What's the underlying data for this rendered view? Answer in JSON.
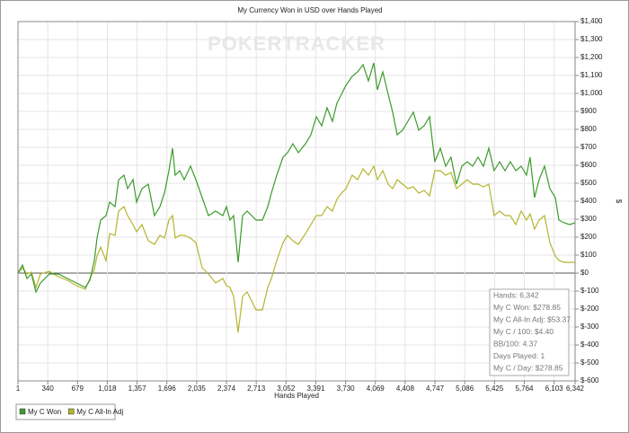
{
  "chart_data": {
    "type": "line",
    "title": "My Currency Won in USD over Hands Played",
    "xlabel": "Hands Played",
    "ylabel": "$",
    "watermark": "POKERTRACKER",
    "x": [
      1,
      52,
      103,
      154,
      206,
      257,
      359,
      461,
      564,
      666,
      768,
      819,
      870,
      901,
      942,
      1003,
      1044,
      1106,
      1146,
      1208,
      1249,
      1310,
      1351,
      1412,
      1484,
      1555,
      1617,
      1668,
      1719,
      1760,
      1791,
      1842,
      1893,
      1965,
      2026,
      2098,
      2169,
      2251,
      2333,
      2374,
      2415,
      2456,
      2507,
      2558,
      2609,
      2660,
      2711,
      2783,
      2844,
      2885,
      2946,
      3018,
      3069,
      3130,
      3192,
      3274,
      3335,
      3396,
      3458,
      3519,
      3580,
      3631,
      3683,
      3734,
      3805,
      3867,
      3928,
      3990,
      4051,
      4092,
      4153,
      4215,
      4266,
      4317,
      4378,
      4439,
      4501,
      4562,
      4624,
      4685,
      4746,
      4808,
      4869,
      4930,
      4992,
      5053,
      5114,
      5176,
      5237,
      5299,
      5360,
      5421,
      5483,
      5544,
      5605,
      5667,
      5728,
      5789,
      5830,
      5881,
      5932,
      5994,
      6055,
      6117,
      6158,
      6219,
      6280,
      6342
    ],
    "series": [
      {
        "name": "My C Won",
        "color": "#3c9a2c",
        "values": [
          0,
          45,
          -30,
          -5,
          -105,
          -55,
          -5,
          -5,
          -30,
          -55,
          -80,
          -40,
          70,
          195,
          295,
          320,
          395,
          370,
          520,
          545,
          470,
          520,
          395,
          470,
          495,
          320,
          370,
          445,
          570,
          695,
          545,
          570,
          520,
          595,
          520,
          420,
          320,
          345,
          320,
          370,
          295,
          320,
          60,
          320,
          345,
          320,
          295,
          295,
          370,
          445,
          545,
          645,
          670,
          720,
          670,
          720,
          770,
          870,
          820,
          920,
          845,
          945,
          995,
          1045,
          1095,
          1120,
          1160,
          1070,
          1170,
          1020,
          1120,
          995,
          895,
          770,
          795,
          845,
          895,
          795,
          820,
          870,
          620,
          695,
          595,
          645,
          495,
          595,
          620,
          595,
          645,
          595,
          695,
          570,
          620,
          570,
          620,
          570,
          595,
          545,
          645,
          420,
          520,
          595,
          470,
          420,
          295,
          280,
          270,
          280
        ]
      },
      {
        "name": "My C All-In Adj",
        "color": "#b4b52f",
        "values": [
          0,
          30,
          -5,
          5,
          -80,
          -5,
          10,
          -20,
          -40,
          -70,
          -90,
          -30,
          20,
          95,
          145,
          70,
          220,
          210,
          345,
          370,
          320,
          270,
          230,
          270,
          180,
          160,
          210,
          195,
          295,
          320,
          195,
          210,
          210,
          195,
          170,
          30,
          -5,
          -55,
          -30,
          -70,
          -80,
          -130,
          -330,
          -130,
          -105,
          -155,
          -205,
          -205,
          -80,
          -30,
          70,
          170,
          210,
          180,
          160,
          220,
          270,
          320,
          320,
          370,
          345,
          410,
          445,
          470,
          545,
          520,
          580,
          545,
          595,
          520,
          570,
          495,
          470,
          520,
          495,
          470,
          480,
          445,
          460,
          430,
          570,
          570,
          545,
          560,
          470,
          495,
          520,
          495,
          495,
          480,
          495,
          320,
          345,
          320,
          320,
          270,
          345,
          295,
          330,
          245,
          295,
          320,
          170,
          95,
          70,
          60,
          60,
          60
        ]
      }
    ],
    "xlim": [
      1,
      6342
    ],
    "xticks": [
      1,
      340,
      679,
      {
        "value": 1018,
        "label": "1,018"
      },
      {
        "value": 1357,
        "label": "1,357"
      },
      {
        "value": 1696,
        "label": "1,696"
      },
      {
        "value": 2035,
        "label": "2,035"
      },
      {
        "value": 2374,
        "label": "2,374"
      },
      {
        "value": 2713,
        "label": "2,713"
      },
      {
        "value": 3052,
        "label": "3,052"
      },
      {
        "value": 3391,
        "label": "3,391"
      },
      {
        "value": 3730,
        "label": "3,730"
      },
      {
        "value": 4069,
        "label": "4,069"
      },
      {
        "value": 4408,
        "label": "4,408"
      },
      {
        "value": 4747,
        "label": "4,747"
      },
      {
        "value": 5086,
        "label": "5,086"
      },
      {
        "value": 5425,
        "label": "5,425"
      },
      {
        "value": 5764,
        "label": "5,764"
      },
      {
        "value": 6103,
        "label": "6,103"
      },
      {
        "value": 6342,
        "label": "6,342"
      }
    ],
    "ylim": [
      -600,
      1400
    ],
    "yticks": [
      {
        "value": -600,
        "label": "$-600"
      },
      {
        "value": -500,
        "label": "$-500"
      },
      {
        "value": -400,
        "label": "$-400"
      },
      {
        "value": -300,
        "label": "$-300"
      },
      {
        "value": -200,
        "label": "$-200"
      },
      {
        "value": -100,
        "label": "$-100"
      },
      {
        "value": 0,
        "label": "$0"
      },
      {
        "value": 100,
        "label": "$100"
      },
      {
        "value": 200,
        "label": "$200"
      },
      {
        "value": 300,
        "label": "$300"
      },
      {
        "value": 400,
        "label": "$400"
      },
      {
        "value": 500,
        "label": "$500"
      },
      {
        "value": 600,
        "label": "$600"
      },
      {
        "value": 700,
        "label": "$700"
      },
      {
        "value": 800,
        "label": "$800"
      },
      {
        "value": 900,
        "label": "$900"
      },
      {
        "value": 1000,
        "label": "$1,000"
      },
      {
        "value": 1100,
        "label": "$1,100"
      },
      {
        "value": 1200,
        "label": "$1,200"
      },
      {
        "value": 1300,
        "label": "$1,300"
      },
      {
        "value": 1400,
        "label": "$1,400"
      }
    ],
    "grid": true,
    "legend": "bottom-left",
    "stats": [
      "Hands: 6,342",
      "My C Won: $278.85",
      "My C All-In Adj: $53.37",
      "My C / 100: $4.40",
      "BB/100: 4.37",
      "Days Played: 1",
      "My C / Day: $278.85"
    ]
  }
}
